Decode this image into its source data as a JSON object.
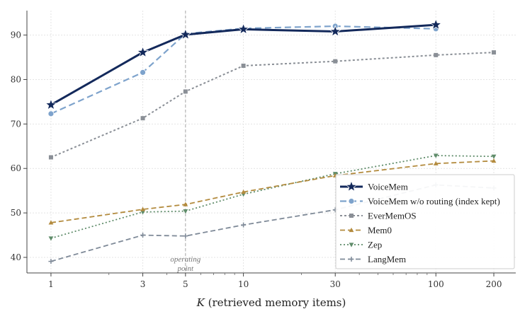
{
  "chart_data": {
    "type": "line",
    "title": "",
    "xlabel_italic": "K",
    "xlabel": " (retrieved memory items)",
    "ylabel": "",
    "x_scale": "log",
    "x": [
      1,
      3,
      5,
      10,
      30,
      100,
      200
    ],
    "x_tick_labels": [
      "1",
      "3",
      "5",
      "10",
      "30",
      "100",
      "200"
    ],
    "xlim": [
      0.75,
      260
    ],
    "ylim": [
      36.5,
      95.5
    ],
    "y_ticks": [
      40,
      50,
      60,
      70,
      80,
      90
    ],
    "y_tick_labels": [
      "40",
      "50",
      "60",
      "70",
      "80",
      "90"
    ],
    "grid": true,
    "legend_position": "lower-right",
    "annotation": {
      "x": 5,
      "lines": [
        "operating",
        "point"
      ],
      "line_style": "dashed vertical"
    },
    "series": [
      {
        "name": "VoiceMem",
        "x": [
          1,
          3,
          5,
          10,
          30,
          100
        ],
        "values": [
          74.3,
          86.1,
          90.1,
          91.3,
          90.8,
          92.3
        ],
        "color": "#13295b",
        "dash": "",
        "width": 3,
        "marker": "star"
      },
      {
        "name": "VoiceMem w/o routing (index kept)",
        "x": [
          1,
          3,
          5,
          10,
          30,
          100
        ],
        "values": [
          72.3,
          81.6,
          90.3,
          91.5,
          92.0,
          91.4
        ],
        "color": "#7ea3cc",
        "dash": "9,5",
        "width": 2.2,
        "marker": "circle"
      },
      {
        "name": "EverMemOS",
        "x": [
          1,
          3,
          5,
          10,
          30,
          100,
          200
        ],
        "values": [
          62.5,
          71.3,
          77.3,
          83.1,
          84.1,
          85.5,
          86.1
        ],
        "color": "#8a8f96",
        "dash": "3,3",
        "width": 2,
        "marker": "square"
      },
      {
        "name": "Mem0",
        "x": [
          1,
          3,
          5,
          10,
          30,
          100,
          200
        ],
        "values": [
          47.8,
          50.8,
          51.9,
          54.7,
          58.4,
          61.1,
          61.7
        ],
        "color": "#b38b3e",
        "dash": "7,4",
        "width": 1.8,
        "marker": "triangle-up"
      },
      {
        "name": "Zep",
        "x": [
          1,
          3,
          5,
          10,
          30,
          100,
          200
        ],
        "values": [
          44.3,
          50.2,
          50.4,
          54.2,
          58.8,
          62.9,
          62.7
        ],
        "color": "#5f8c6a",
        "dash": "2,3",
        "width": 1.8,
        "marker": "triangle-down"
      },
      {
        "name": "LangMem",
        "x": [
          1,
          3,
          5,
          10,
          30,
          100,
          200
        ],
        "values": [
          39.1,
          45.0,
          44.8,
          47.3,
          50.7,
          56.3,
          55.6
        ],
        "color": "#7f8a98",
        "dash": "7,4",
        "width": 1.8,
        "marker": "plus"
      }
    ]
  }
}
